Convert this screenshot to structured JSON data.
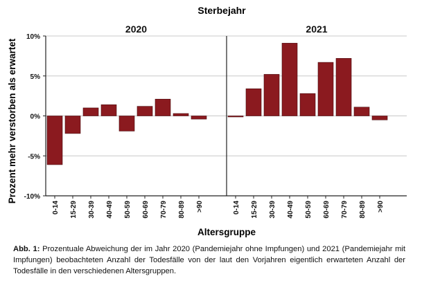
{
  "chart_data": {
    "type": "bar",
    "facet_title": "Sterbejahr",
    "ylabel": "Prozent mehr verstorben als erwartet",
    "xlabel": "Altersgruppe",
    "categories": [
      "0-14",
      "15-29",
      "30-39",
      "40-49",
      "50-59",
      "60-69",
      "70-79",
      "80-89",
      ">90"
    ],
    "y_ticks": [
      "10%",
      "5%",
      "0%",
      "-5%",
      "-10%"
    ],
    "ylim": [
      -10,
      10
    ],
    "grid": true,
    "bar_color": "#8b1a1f",
    "panels": [
      {
        "title": "2020",
        "values": [
          -6.1,
          -2.2,
          1.0,
          1.4,
          -1.9,
          1.2,
          2.1,
          0.3,
          -0.4
        ]
      },
      {
        "title": "2021",
        "values": [
          -0.1,
          3.4,
          5.2,
          9.1,
          2.8,
          6.7,
          7.2,
          1.1,
          -0.5
        ]
      }
    ]
  },
  "caption": {
    "label": "Abb. 1:",
    "text": "Prozentuale Abweichung der im Jahr 2020 (Pandemiejahr ohne Impfungen) und 2021 (Pandemiejahr mit Impfungen) beobachteten Anzahl der Todesfälle von der laut den Vorjahren eigentlich erwarteten Anzahl der Todesfälle in den verschiedenen Altersgruppen."
  }
}
